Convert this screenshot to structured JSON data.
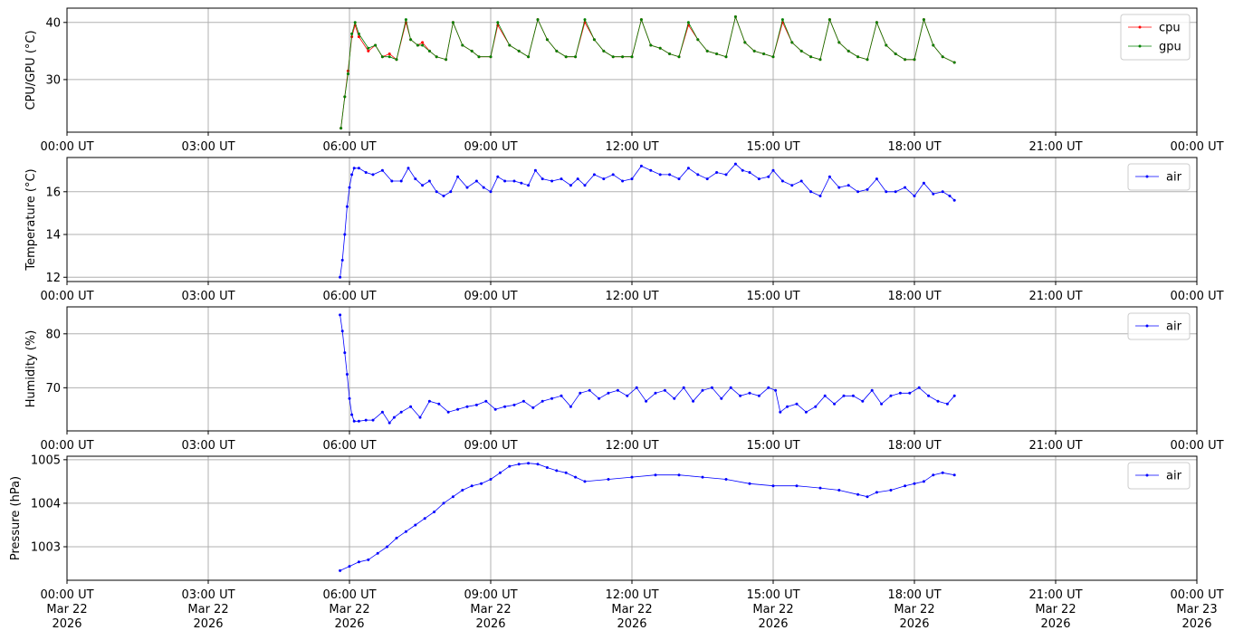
{
  "chart_data": [
    {
      "type": "line",
      "ylabel": "CPU/GPU (°C)",
      "ylim": [
        20.8,
        42.5
      ],
      "yticks": [
        30,
        40
      ],
      "xlim": [
        0,
        24
      ],
      "xtick_labels": [
        "00:00 UT",
        "03:00 UT",
        "06:00 UT",
        "09:00 UT",
        "12:00 UT",
        "15:00 UT",
        "18:00 UT",
        "21:00 UT",
        "00:00 UT"
      ],
      "grid": true,
      "legend": "top-right",
      "series": [
        {
          "name": "cpu",
          "color": "#ff0000",
          "x": [
            5.82,
            5.9,
            5.97,
            6.05,
            6.12,
            6.2,
            6.4,
            6.55,
            6.7,
            6.85,
            7.0,
            7.2,
            7.3,
            7.45,
            7.55,
            7.7,
            7.85,
            8.05,
            8.2,
            8.4,
            8.6,
            8.75,
            9.0,
            9.15,
            9.4,
            9.6,
            9.8,
            10.0,
            10.2,
            10.4,
            10.6,
            10.8,
            11.0,
            11.2,
            11.4,
            11.6,
            11.8,
            12.0,
            12.2,
            12.4,
            12.6,
            12.8,
            13.0,
            13.2,
            13.4,
            13.6,
            13.8,
            14.0,
            14.2,
            14.4,
            14.6,
            14.8,
            15.0,
            15.2,
            15.4,
            15.6,
            15.8,
            16.0,
            16.2,
            16.4,
            16.6,
            16.8,
            17.0,
            17.2,
            17.4,
            17.6,
            17.8,
            18.0,
            18.2,
            18.4,
            18.6,
            18.85
          ],
          "values": [
            21.5,
            27.0,
            31.5,
            37.5,
            39.5,
            37.5,
            35.0,
            36.0,
            34.0,
            34.5,
            33.5,
            40.0,
            37.0,
            36.0,
            36.5,
            35.0,
            34.0,
            33.5,
            40.0,
            36.0,
            35.0,
            34.0,
            34.0,
            39.5,
            36.0,
            35.0,
            34.0,
            40.5,
            37.0,
            35.0,
            34.0,
            34.0,
            40.0,
            37.0,
            35.0,
            34.0,
            34.0,
            34.0,
            40.5,
            36.0,
            35.5,
            34.5,
            34.0,
            39.5,
            37.0,
            35.0,
            34.5,
            34.0,
            41.0,
            36.5,
            35.0,
            34.5,
            34.0,
            40.0,
            36.5,
            35.0,
            34.0,
            33.5,
            40.5,
            36.5,
            35.0,
            34.0,
            33.5,
            40.0,
            36.0,
            34.5,
            33.5,
            33.5,
            40.5,
            36.0,
            34.0,
            33.0
          ]
        },
        {
          "name": "gpu",
          "color": "#008000",
          "x": [
            5.82,
            5.9,
            5.97,
            6.05,
            6.12,
            6.2,
            6.4,
            6.55,
            6.7,
            6.85,
            7.0,
            7.2,
            7.3,
            7.45,
            7.55,
            7.7,
            7.85,
            8.05,
            8.2,
            8.4,
            8.6,
            8.75,
            9.0,
            9.15,
            9.4,
            9.6,
            9.8,
            10.0,
            10.2,
            10.4,
            10.6,
            10.8,
            11.0,
            11.2,
            11.4,
            11.6,
            11.8,
            12.0,
            12.2,
            12.4,
            12.6,
            12.8,
            13.0,
            13.2,
            13.4,
            13.6,
            13.8,
            14.0,
            14.2,
            14.4,
            14.6,
            14.8,
            15.0,
            15.2,
            15.4,
            15.6,
            15.8,
            16.0,
            16.2,
            16.4,
            16.6,
            16.8,
            17.0,
            17.2,
            17.4,
            17.6,
            17.8,
            18.0,
            18.2,
            18.4,
            18.6,
            18.85
          ],
          "values": [
            21.5,
            27.0,
            31.0,
            38.0,
            40.0,
            38.0,
            35.5,
            36.0,
            34.0,
            34.0,
            33.5,
            40.5,
            37.0,
            36.0,
            36.0,
            35.0,
            34.0,
            33.5,
            40.0,
            36.0,
            35.0,
            34.0,
            34.0,
            40.0,
            36.0,
            35.0,
            34.0,
            40.5,
            37.0,
            35.0,
            34.0,
            34.0,
            40.5,
            37.0,
            35.0,
            34.0,
            34.0,
            34.0,
            40.5,
            36.0,
            35.5,
            34.5,
            34.0,
            40.0,
            37.0,
            35.0,
            34.5,
            34.0,
            41.0,
            36.5,
            35.0,
            34.5,
            34.0,
            40.5,
            36.5,
            35.0,
            34.0,
            33.5,
            40.5,
            36.5,
            35.0,
            34.0,
            33.5,
            40.0,
            36.0,
            34.5,
            33.5,
            33.5,
            40.5,
            36.0,
            34.0,
            33.0
          ]
        }
      ]
    },
    {
      "type": "line",
      "ylabel": "Temperature (°C)",
      "ylim": [
        11.8,
        17.6
      ],
      "yticks": [
        12,
        14,
        16
      ],
      "xlim": [
        0,
        24
      ],
      "xtick_labels": [
        "00:00 UT",
        "03:00 UT",
        "06:00 UT",
        "09:00 UT",
        "12:00 UT",
        "15:00 UT",
        "18:00 UT",
        "21:00 UT",
        "00:00 UT"
      ],
      "grid": true,
      "legend": "top-right",
      "series": [
        {
          "name": "air",
          "color": "#0000ff",
          "x": [
            5.8,
            5.85,
            5.9,
            5.95,
            6.0,
            6.05,
            6.1,
            6.2,
            6.35,
            6.5,
            6.7,
            6.9,
            7.1,
            7.25,
            7.4,
            7.55,
            7.7,
            7.85,
            8.0,
            8.15,
            8.3,
            8.5,
            8.7,
            8.85,
            9.0,
            9.15,
            9.3,
            9.5,
            9.65,
            9.8,
            9.95,
            10.1,
            10.3,
            10.5,
            10.7,
            10.85,
            11.0,
            11.2,
            11.4,
            11.6,
            11.8,
            12.0,
            12.2,
            12.4,
            12.6,
            12.8,
            13.0,
            13.2,
            13.4,
            13.6,
            13.8,
            14.0,
            14.2,
            14.35,
            14.5,
            14.7,
            14.9,
            15.0,
            15.2,
            15.4,
            15.6,
            15.8,
            16.0,
            16.2,
            16.4,
            16.6,
            16.8,
            17.0,
            17.2,
            17.4,
            17.6,
            17.8,
            18.0,
            18.2,
            18.4,
            18.6,
            18.75,
            18.85
          ],
          "values": [
            12.0,
            12.8,
            14.0,
            15.3,
            16.2,
            16.8,
            17.1,
            17.1,
            16.9,
            16.8,
            17.0,
            16.5,
            16.5,
            17.1,
            16.6,
            16.3,
            16.5,
            16.0,
            15.8,
            16.0,
            16.7,
            16.2,
            16.5,
            16.2,
            16.0,
            16.7,
            16.5,
            16.5,
            16.4,
            16.3,
            17.0,
            16.6,
            16.5,
            16.6,
            16.3,
            16.6,
            16.3,
            16.8,
            16.6,
            16.8,
            16.5,
            16.6,
            17.2,
            17.0,
            16.8,
            16.8,
            16.6,
            17.1,
            16.8,
            16.6,
            16.9,
            16.8,
            17.3,
            17.0,
            16.9,
            16.6,
            16.7,
            17.0,
            16.5,
            16.3,
            16.5,
            16.0,
            15.8,
            16.7,
            16.2,
            16.3,
            16.0,
            16.1,
            16.6,
            16.0,
            16.0,
            16.2,
            15.8,
            16.4,
            15.9,
            16.0,
            15.8,
            15.6
          ]
        }
      ]
    },
    {
      "type": "line",
      "ylabel": "Humidity (%)",
      "ylim": [
        62.0,
        85.0
      ],
      "yticks": [
        70,
        80
      ],
      "xlim": [
        0,
        24
      ],
      "xtick_labels": [
        "00:00 UT",
        "03:00 UT",
        "06:00 UT",
        "09:00 UT",
        "12:00 UT",
        "15:00 UT",
        "18:00 UT",
        "21:00 UT",
        "00:00 UT"
      ],
      "grid": true,
      "legend": "top-right",
      "series": [
        {
          "name": "air",
          "color": "#0000ff",
          "x": [
            5.8,
            5.85,
            5.9,
            5.95,
            6.0,
            6.05,
            6.1,
            6.2,
            6.35,
            6.5,
            6.7,
            6.85,
            6.95,
            7.1,
            7.3,
            7.5,
            7.7,
            7.9,
            8.1,
            8.3,
            8.5,
            8.7,
            8.9,
            9.1,
            9.3,
            9.5,
            9.7,
            9.9,
            10.1,
            10.3,
            10.5,
            10.7,
            10.9,
            11.1,
            11.3,
            11.5,
            11.7,
            11.9,
            12.1,
            12.3,
            12.5,
            12.7,
            12.9,
            13.1,
            13.3,
            13.5,
            13.7,
            13.9,
            14.1,
            14.3,
            14.5,
            14.7,
            14.9,
            15.05,
            15.15,
            15.3,
            15.5,
            15.7,
            15.9,
            16.1,
            16.3,
            16.5,
            16.7,
            16.9,
            17.1,
            17.3,
            17.5,
            17.7,
            17.9,
            18.1,
            18.3,
            18.5,
            18.7,
            18.85
          ],
          "values": [
            83.5,
            80.5,
            76.5,
            72.5,
            68.0,
            65.0,
            63.8,
            63.8,
            64.0,
            64.0,
            65.5,
            63.5,
            64.5,
            65.5,
            66.5,
            64.5,
            67.5,
            67.0,
            65.5,
            66.0,
            66.5,
            66.8,
            67.5,
            66.0,
            66.5,
            66.8,
            67.5,
            66.3,
            67.5,
            68.0,
            68.5,
            66.5,
            69.0,
            69.5,
            68.0,
            69.0,
            69.5,
            68.5,
            70.0,
            67.5,
            69.0,
            69.5,
            68.0,
            70.0,
            67.5,
            69.5,
            70.0,
            68.0,
            70.0,
            68.5,
            69.0,
            68.5,
            70.0,
            69.5,
            65.5,
            66.5,
            67.0,
            65.5,
            66.5,
            68.5,
            67.0,
            68.5,
            68.5,
            67.5,
            69.5,
            67.0,
            68.5,
            69.0,
            69.0,
            70.0,
            68.5,
            67.5,
            67.0,
            68.5
          ]
        }
      ]
    },
    {
      "type": "line",
      "ylabel": "Pressure (hPa)",
      "ylim": [
        1002.23,
        1005.08
      ],
      "yticks": [
        1003,
        1004,
        1005
      ],
      "xlim": [
        0,
        24
      ],
      "xtick_labels": [
        "00:00 UT\nMar 22\n2026",
        "03:00 UT\nMar 22\n2026",
        "06:00 UT\nMar 22\n2026",
        "09:00 UT\nMar 22\n2026",
        "12:00 UT\nMar 22\n2026",
        "15:00 UT\nMar 22\n2026",
        "18:00 UT\nMar 22\n2026",
        "21:00 UT\nMar 22\n2026",
        "00:00 UT\nMar 23\n2026"
      ],
      "grid": true,
      "legend": "top-right",
      "series": [
        {
          "name": "air",
          "color": "#0000ff",
          "x": [
            5.8,
            6.0,
            6.2,
            6.4,
            6.6,
            6.8,
            7.0,
            7.2,
            7.4,
            7.6,
            7.8,
            8.0,
            8.2,
            8.4,
            8.6,
            8.8,
            9.0,
            9.2,
            9.4,
            9.6,
            9.8,
            10.0,
            10.2,
            10.4,
            10.6,
            10.8,
            11.0,
            11.5,
            12.0,
            12.5,
            13.0,
            13.5,
            14.0,
            14.5,
            15.0,
            15.5,
            16.0,
            16.4,
            16.8,
            17.0,
            17.2,
            17.5,
            17.8,
            18.0,
            18.2,
            18.4,
            18.6,
            18.85
          ],
          "values": [
            1002.45,
            1002.55,
            1002.65,
            1002.7,
            1002.85,
            1003.0,
            1003.2,
            1003.35,
            1003.5,
            1003.65,
            1003.8,
            1004.0,
            1004.15,
            1004.3,
            1004.4,
            1004.45,
            1004.55,
            1004.7,
            1004.85,
            1004.9,
            1004.92,
            1004.9,
            1004.82,
            1004.75,
            1004.7,
            1004.6,
            1004.5,
            1004.55,
            1004.6,
            1004.65,
            1004.65,
            1004.6,
            1004.55,
            1004.45,
            1004.4,
            1004.4,
            1004.35,
            1004.3,
            1004.2,
            1004.15,
            1004.25,
            1004.3,
            1004.4,
            1004.45,
            1004.5,
            1004.65,
            1004.7,
            1004.65
          ]
        }
      ]
    }
  ]
}
